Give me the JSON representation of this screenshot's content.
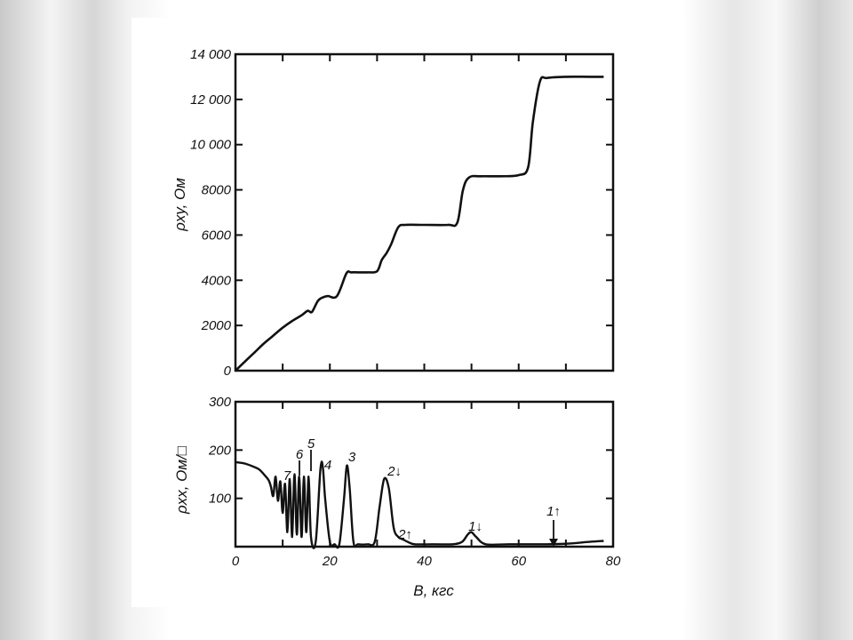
{
  "chart_data": [
    {
      "type": "line",
      "title": "",
      "xlabel": "",
      "ylabel": "ρxy, Ом",
      "xlim": [
        0,
        80
      ],
      "ylim": [
        0,
        14000
      ],
      "grid": false,
      "ytick_labels": [
        "0",
        "2000",
        "4000",
        "6000",
        "8000",
        "10 000",
        "12 000",
        "14 000"
      ],
      "series": [
        {
          "x": [
            0,
            2,
            4,
            6,
            8,
            10,
            12,
            14,
            15.3,
            16.2,
            17.5,
            18.6,
            19.6,
            21.5,
            23.5,
            24.5,
            26,
            28,
            30,
            31,
            32,
            33,
            34.5,
            36,
            40,
            45,
            47,
            48.2,
            49.5,
            52,
            56,
            60,
            62,
            63,
            64.5,
            66,
            70,
            75,
            78
          ],
          "values": [
            0,
            400,
            800,
            1200,
            1550,
            1900,
            2200,
            2450,
            2650,
            2600,
            3100,
            3250,
            3300,
            3300,
            4300,
            4350,
            4350,
            4350,
            4400,
            4900,
            5200,
            5600,
            6350,
            6450,
            6450,
            6450,
            6550,
            8000,
            8550,
            8600,
            8600,
            8650,
            9000,
            11000,
            12800,
            12950,
            13000,
            13000,
            13000
          ]
        }
      ]
    },
    {
      "type": "line",
      "title": "",
      "xlabel": "B, кгс",
      "ylabel": "ρxx, Ом/□",
      "xlim": [
        0,
        80
      ],
      "ylim": [
        0,
        300
      ],
      "grid": false,
      "xtick_labels": [
        "0",
        "20",
        "40",
        "60",
        "80"
      ],
      "ytick_labels": [
        "100",
        "200",
        "300"
      ],
      "series": [
        {
          "x": [
            0,
            2,
            4,
            5,
            6,
            7,
            7.5,
            8,
            8.5,
            9,
            9.5,
            10,
            10.5,
            11,
            11.5,
            12,
            12.5,
            13,
            13.5,
            14,
            14.5,
            15,
            15.5,
            16,
            17,
            18,
            18.5,
            19,
            20,
            21,
            22,
            23,
            23.6,
            24.2,
            25,
            26,
            28,
            29.5,
            30.5,
            31.5,
            32.5,
            33.5,
            34.5,
            35.5,
            36.5,
            38,
            42,
            46,
            48,
            49.2,
            50,
            51,
            53,
            58,
            63,
            66,
            70,
            75,
            78
          ],
          "values": [
            175,
            172,
            165,
            160,
            150,
            138,
            125,
            105,
            145,
            95,
            135,
            70,
            130,
            30,
            140,
            20,
            150,
            25,
            145,
            20,
            145,
            30,
            145,
            20,
            10,
            160,
            165,
            100,
            10,
            5,
            5,
            100,
            168,
            120,
            10,
            5,
            5,
            10,
            80,
            140,
            120,
            40,
            20,
            15,
            10,
            5,
            5,
            5,
            10,
            25,
            30,
            20,
            5,
            5,
            5,
            5,
            6,
            10,
            12
          ]
        }
      ],
      "annotations": [
        "7",
        "6",
        "5",
        "4",
        "3",
        "2↓",
        "2↑",
        "1↓",
        "1↑"
      ]
    }
  ]
}
